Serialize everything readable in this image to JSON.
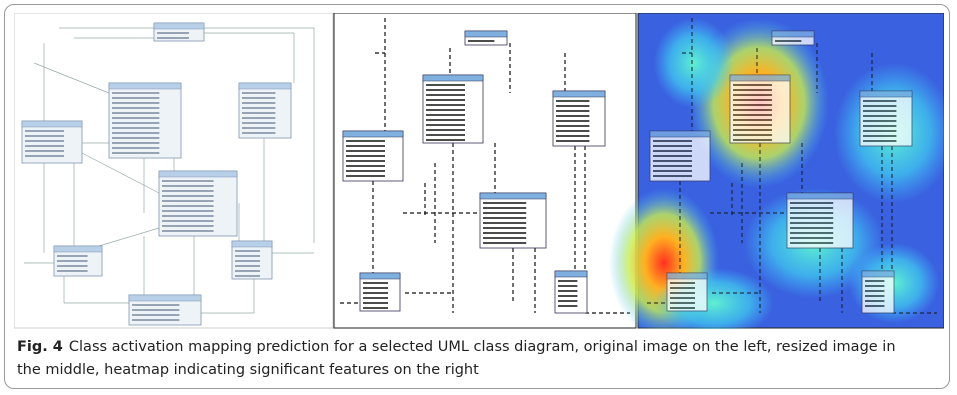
{
  "figure": {
    "label": "Fig. 4",
    "caption": "Class activation mapping prediction for a selected UML class diagram, original image on the left, resized image in the middle, heatmap indicating significant features on the right"
  }
}
